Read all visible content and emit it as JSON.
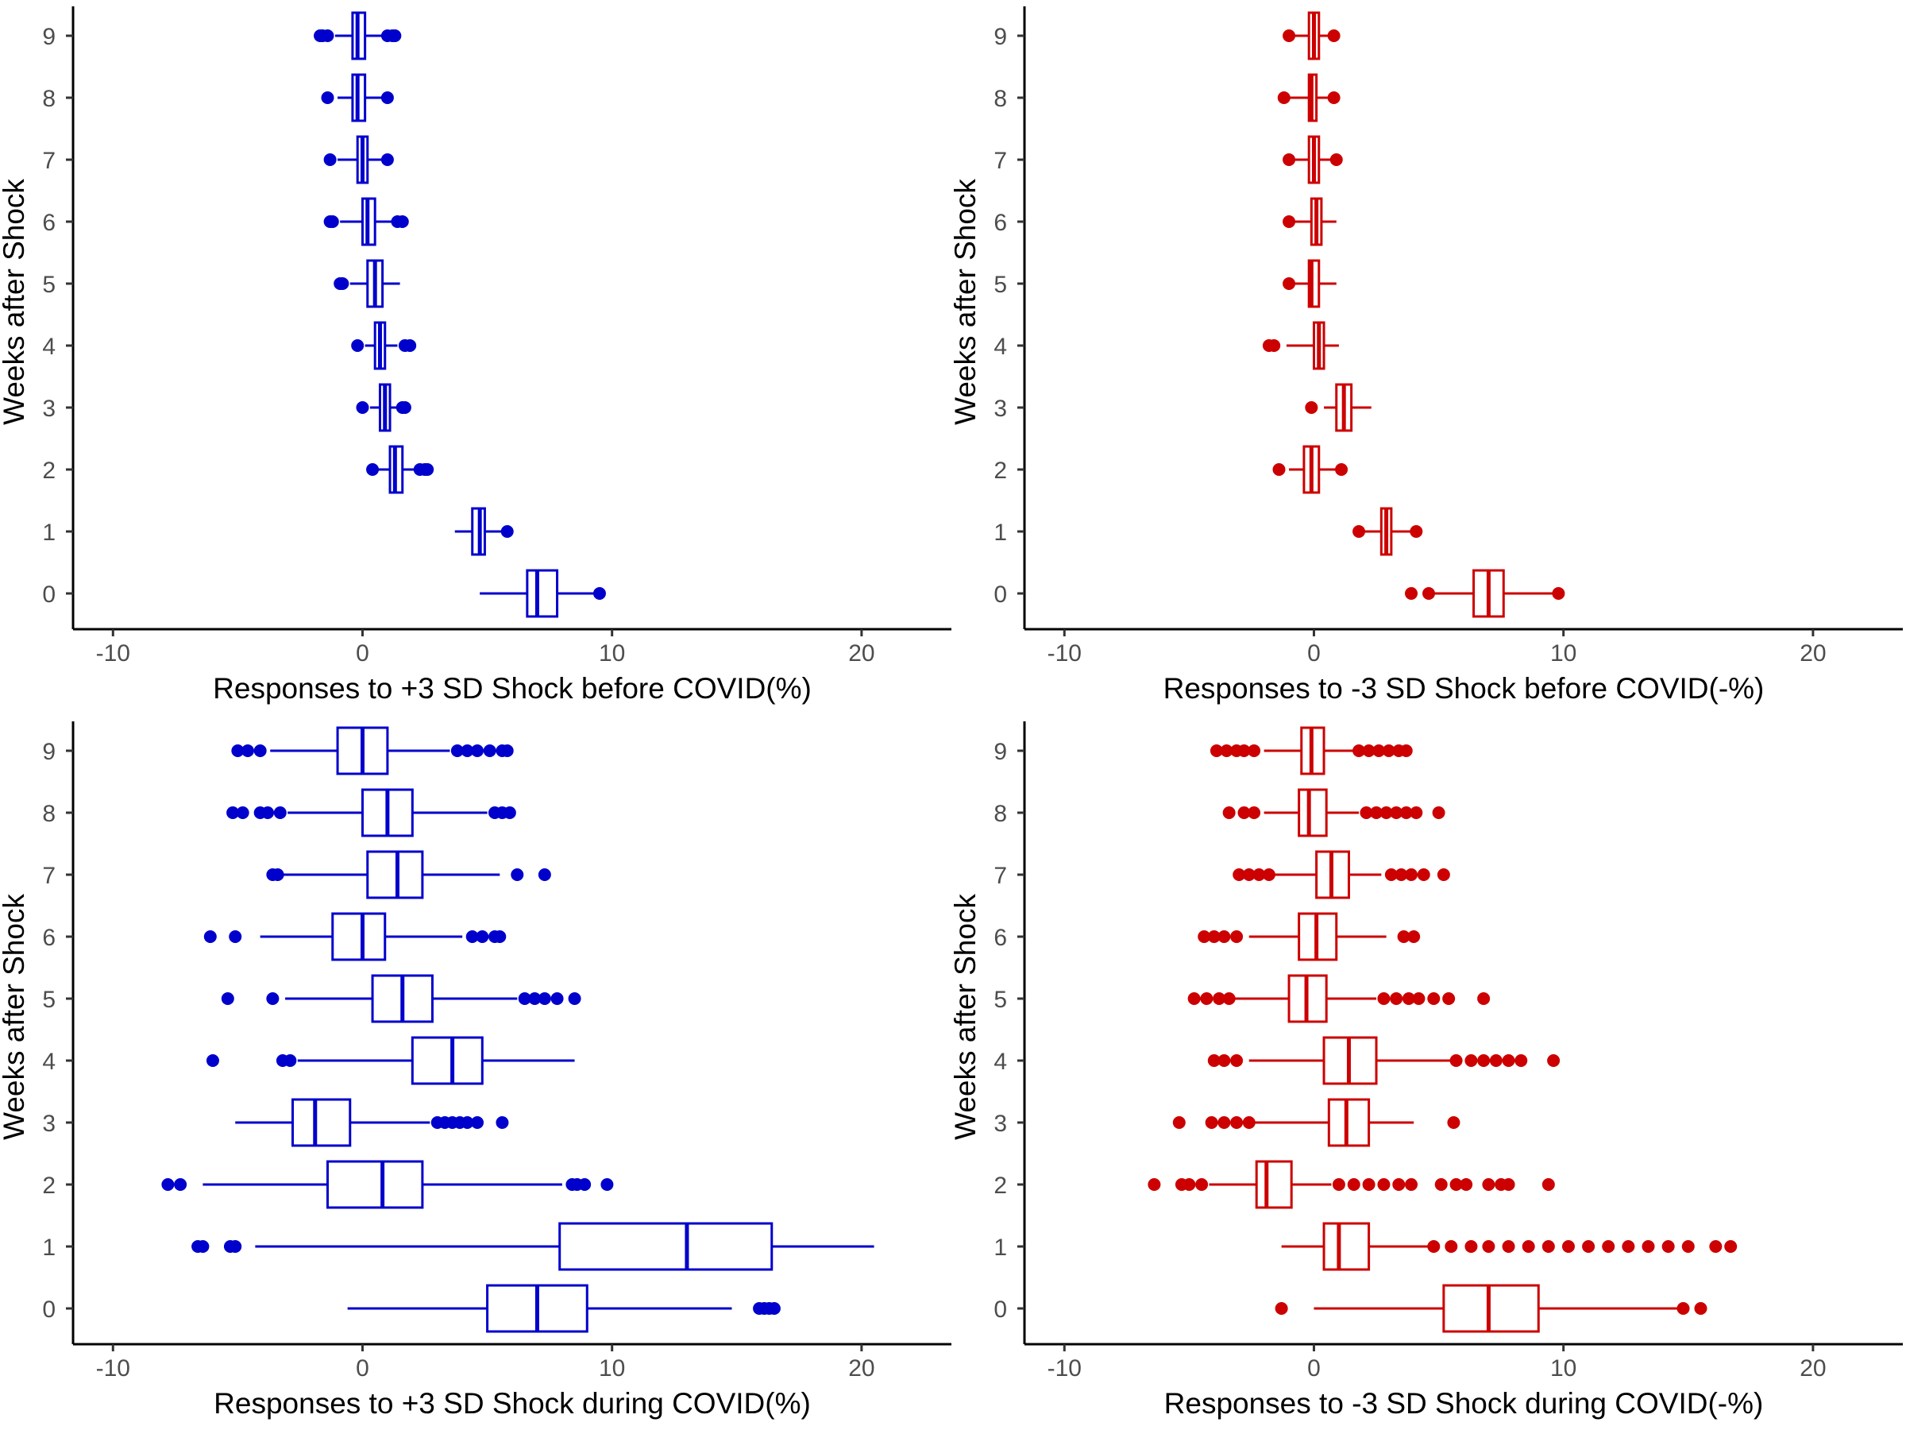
{
  "chart_data": [
    {
      "type": "boxplot",
      "orientation": "horizontal",
      "color": "#0000cc",
      "xlabel": "Responses to +3 SD Shock before COVID(%)",
      "ylabel": "Weeks after Shock",
      "xlim": [
        -11.6,
        23.6
      ],
      "xticks": [
        -10,
        0,
        10,
        20
      ],
      "xtick_labels": [
        "-10",
        "0",
        "10",
        "20"
      ],
      "categories": [
        "0",
        "1",
        "2",
        "3",
        "4",
        "5",
        "6",
        "7",
        "8",
        "9"
      ],
      "grid": false,
      "boxes": [
        {
          "week": "0",
          "whisker_low": 4.7,
          "q1": 6.6,
          "median": 7.0,
          "q3": 7.8,
          "whisker_high": 9.4,
          "outliers": [
            9.5
          ]
        },
        {
          "week": "1",
          "whisker_low": 3.7,
          "q1": 4.4,
          "median": 4.7,
          "q3": 4.9,
          "whisker_high": 5.6,
          "outliers": [
            5.8
          ]
        },
        {
          "week": "2",
          "whisker_low": 0.6,
          "q1": 1.1,
          "median": 1.3,
          "q3": 1.6,
          "whisker_high": 2.1,
          "outliers": [
            0.4,
            2.3,
            2.5,
            2.6
          ]
        },
        {
          "week": "3",
          "whisker_low": 0.3,
          "q1": 0.7,
          "median": 0.9,
          "q3": 1.1,
          "whisker_high": 1.5,
          "outliers": [
            0.0,
            1.6,
            1.7
          ]
        },
        {
          "week": "4",
          "whisker_low": 0.1,
          "q1": 0.5,
          "median": 0.7,
          "q3": 0.9,
          "whisker_high": 1.4,
          "outliers": [
            -0.2,
            1.7,
            1.9
          ]
        },
        {
          "week": "5",
          "whisker_low": -0.5,
          "q1": 0.2,
          "median": 0.5,
          "q3": 0.8,
          "whisker_high": 1.5,
          "outliers": [
            -0.8,
            -0.9
          ]
        },
        {
          "week": "6",
          "whisker_low": -0.9,
          "q1": 0.0,
          "median": 0.2,
          "q3": 0.5,
          "whisker_high": 1.2,
          "outliers": [
            -1.2,
            -1.3,
            1.4,
            1.6
          ]
        },
        {
          "week": "7",
          "whisker_low": -1.0,
          "q1": -0.2,
          "median": 0.0,
          "q3": 0.2,
          "whisker_high": 0.9,
          "outliers": [
            -1.3,
            1.0
          ]
        },
        {
          "week": "8",
          "whisker_low": -1.0,
          "q1": -0.4,
          "median": -0.2,
          "q3": 0.1,
          "whisker_high": 0.8,
          "outliers": [
            -1.4,
            1.0
          ]
        },
        {
          "week": "9",
          "whisker_low": -1.1,
          "q1": -0.4,
          "median": -0.2,
          "q3": 0.1,
          "whisker_high": 0.8,
          "outliers": [
            -1.4,
            -1.6,
            -1.7,
            1.0,
            1.2,
            1.3
          ]
        }
      ]
    },
    {
      "type": "boxplot",
      "orientation": "horizontal",
      "color": "#cc0000",
      "xlabel": "Responses to -3 SD Shock before COVID(-%)",
      "ylabel": "Weeks after Shock",
      "xlim": [
        -11.6,
        23.6
      ],
      "xticks": [
        -10,
        0,
        10,
        20
      ],
      "xtick_labels": [
        "-10",
        "0",
        "10",
        "20"
      ],
      "categories": [
        "0",
        "1",
        "2",
        "3",
        "4",
        "5",
        "6",
        "7",
        "8",
        "9"
      ],
      "grid": false,
      "boxes": [
        {
          "week": "0",
          "whisker_low": 4.8,
          "q1": 6.4,
          "median": 7.0,
          "q3": 7.6,
          "whisker_high": 9.6,
          "outliers": [
            3.9,
            4.6,
            9.8
          ]
        },
        {
          "week": "1",
          "whisker_low": 2.0,
          "q1": 2.7,
          "median": 2.9,
          "q3": 3.1,
          "whisker_high": 3.9,
          "outliers": [
            1.8,
            4.1
          ]
        },
        {
          "week": "2",
          "whisker_low": -1.0,
          "q1": -0.4,
          "median": -0.1,
          "q3": 0.2,
          "whisker_high": 0.9,
          "outliers": [
            -1.4,
            1.1
          ]
        },
        {
          "week": "3",
          "whisker_low": 0.4,
          "q1": 0.9,
          "median": 1.2,
          "q3": 1.5,
          "whisker_high": 2.3,
          "outliers": [
            -0.1
          ]
        },
        {
          "week": "4",
          "whisker_low": -1.1,
          "q1": 0.0,
          "median": 0.2,
          "q3": 0.4,
          "whisker_high": 1.0,
          "outliers": [
            -1.6,
            -1.8
          ]
        },
        {
          "week": "5",
          "whisker_low": -0.9,
          "q1": -0.2,
          "median": -0.1,
          "q3": 0.2,
          "whisker_high": 0.9,
          "outliers": [
            -1.0
          ]
        },
        {
          "week": "6",
          "whisker_low": -0.9,
          "q1": -0.1,
          "median": 0.1,
          "q3": 0.3,
          "whisker_high": 0.9,
          "outliers": [
            -1.0
          ]
        },
        {
          "week": "7",
          "whisker_low": -0.9,
          "q1": -0.2,
          "median": 0.0,
          "q3": 0.2,
          "whisker_high": 0.8,
          "outliers": [
            -1.0,
            0.9
          ]
        },
        {
          "week": "8",
          "whisker_low": -1.0,
          "q1": -0.2,
          "median": -0.1,
          "q3": 0.1,
          "whisker_high": 0.7,
          "outliers": [
            -1.2,
            0.8
          ]
        },
        {
          "week": "9",
          "whisker_low": -0.9,
          "q1": -0.2,
          "median": 0.0,
          "q3": 0.2,
          "whisker_high": 0.7,
          "outliers": [
            -1.0,
            0.8
          ]
        }
      ]
    },
    {
      "type": "boxplot",
      "orientation": "horizontal",
      "color": "#0000cc",
      "xlabel": "Responses to +3 SD Shock during COVID(%)",
      "ylabel": "Weeks after Shock",
      "xlim": [
        -11.6,
        23.6
      ],
      "xticks": [
        -10,
        0,
        10,
        20
      ],
      "xtick_labels": [
        "-10",
        "0",
        "10",
        "20"
      ],
      "categories": [
        "0",
        "1",
        "2",
        "3",
        "4",
        "5",
        "6",
        "7",
        "8",
        "9"
      ],
      "grid": false,
      "boxes": [
        {
          "week": "0",
          "whisker_low": -0.6,
          "q1": 5.0,
          "median": 7.0,
          "q3": 9.0,
          "whisker_high": 14.8,
          "outliers": [
            15.9,
            16.1,
            16.3,
            16.5
          ]
        },
        {
          "week": "1",
          "whisker_low": -4.3,
          "q1": 7.9,
          "median": 13.0,
          "q3": 16.4,
          "whisker_high": 20.5,
          "outliers": [
            -6.6,
            -6.4,
            -5.3,
            -5.1
          ]
        },
        {
          "week": "2",
          "whisker_low": -6.4,
          "q1": -1.4,
          "median": 0.8,
          "q3": 2.4,
          "whisker_high": 8.0,
          "outliers": [
            -7.8,
            -7.3,
            8.4,
            8.6,
            8.9,
            9.8
          ]
        },
        {
          "week": "3",
          "whisker_low": -5.1,
          "q1": -2.8,
          "median": -1.9,
          "q3": -0.5,
          "whisker_high": 2.7,
          "outliers": [
            3.0,
            3.3,
            3.6,
            3.9,
            4.2,
            4.6,
            5.6
          ]
        },
        {
          "week": "4",
          "whisker_low": -2.6,
          "q1": 2.0,
          "median": 3.6,
          "q3": 4.8,
          "whisker_high": 8.5,
          "outliers": [
            -6.0,
            -3.2,
            -2.9
          ]
        },
        {
          "week": "5",
          "whisker_low": -3.1,
          "q1": 0.4,
          "median": 1.6,
          "q3": 2.8,
          "whisker_high": 6.2,
          "outliers": [
            -5.4,
            -3.6,
            6.5,
            6.9,
            7.3,
            7.8,
            8.5
          ]
        },
        {
          "week": "6",
          "whisker_low": -4.1,
          "q1": -1.2,
          "median": 0.0,
          "q3": 0.9,
          "whisker_high": 4.0,
          "outliers": [
            -6.1,
            -5.1,
            4.4,
            4.8,
            5.3,
            5.5
          ]
        },
        {
          "week": "7",
          "whisker_low": -3.2,
          "q1": 0.2,
          "median": 1.4,
          "q3": 2.4,
          "whisker_high": 5.5,
          "outliers": [
            -3.6,
            -3.4,
            6.2,
            7.3
          ]
        },
        {
          "week": "8",
          "whisker_low": -3.0,
          "q1": 0.0,
          "median": 1.0,
          "q3": 2.0,
          "whisker_high": 5.0,
          "outliers": [
            -5.2,
            -4.8,
            -4.1,
            -3.8,
            -3.3,
            5.3,
            5.6,
            5.9
          ]
        },
        {
          "week": "9",
          "whisker_low": -3.7,
          "q1": -1.0,
          "median": 0.0,
          "q3": 1.0,
          "whisker_high": 3.5,
          "outliers": [
            -5.0,
            -4.6,
            -4.1,
            3.8,
            4.2,
            4.6,
            5.1,
            5.6,
            5.8
          ]
        }
      ]
    },
    {
      "type": "boxplot",
      "orientation": "horizontal",
      "color": "#cc0000",
      "xlabel": "Responses to -3 SD Shock during COVID(-%)",
      "ylabel": "Weeks after Shock",
      "xlim": [
        -11.6,
        23.6
      ],
      "xticks": [
        -10,
        0,
        10,
        20
      ],
      "xtick_labels": [
        "-10",
        "0",
        "10",
        "20"
      ],
      "categories": [
        "0",
        "1",
        "2",
        "3",
        "4",
        "5",
        "6",
        "7",
        "8",
        "9"
      ],
      "grid": false,
      "boxes": [
        {
          "week": "0",
          "whisker_low": 0.0,
          "q1": 5.2,
          "median": 7.0,
          "q3": 9.0,
          "whisker_high": 14.6,
          "outliers": [
            -1.3,
            14.8,
            15.5
          ]
        },
        {
          "week": "1",
          "whisker_low": -1.3,
          "q1": 0.4,
          "median": 1.0,
          "q3": 2.2,
          "whisker_high": 4.6,
          "outliers": [
            4.8,
            5.5,
            6.3,
            7.0,
            7.8,
            8.6,
            9.4,
            10.2,
            11.0,
            11.8,
            12.6,
            13.4,
            14.2,
            15.0,
            16.1,
            16.7
          ]
        },
        {
          "week": "2",
          "whisker_low": -4.2,
          "q1": -2.3,
          "median": -1.9,
          "q3": -0.9,
          "whisker_high": 0.7,
          "outliers": [
            -6.4,
            -5.3,
            -5.0,
            -4.5,
            1.0,
            1.6,
            2.2,
            2.8,
            3.4,
            3.9,
            5.1,
            5.7,
            6.1,
            7.0,
            7.5,
            7.8,
            9.4
          ]
        },
        {
          "week": "3",
          "whisker_low": -2.4,
          "q1": 0.6,
          "median": 1.3,
          "q3": 2.2,
          "whisker_high": 4.0,
          "outliers": [
            -5.4,
            -4.1,
            -3.6,
            -3.1,
            -2.6,
            5.6
          ]
        },
        {
          "week": "4",
          "whisker_low": -2.6,
          "q1": 0.4,
          "median": 1.4,
          "q3": 2.5,
          "whisker_high": 5.5,
          "outliers": [
            -4.0,
            -3.6,
            -3.1,
            5.7,
            6.3,
            6.8,
            7.3,
            7.8,
            8.3,
            9.6
          ]
        },
        {
          "week": "5",
          "whisker_low": -3.2,
          "q1": -1.0,
          "median": -0.3,
          "q3": 0.5,
          "whisker_high": 2.5,
          "outliers": [
            -4.8,
            -4.3,
            -3.8,
            -3.4,
            2.8,
            3.3,
            3.8,
            4.2,
            4.8,
            5.4,
            6.8
          ]
        },
        {
          "week": "6",
          "whisker_low": -2.6,
          "q1": -0.6,
          "median": 0.1,
          "q3": 0.9,
          "whisker_high": 2.9,
          "outliers": [
            -4.4,
            -4.0,
            -3.6,
            -3.1,
            3.6,
            4.0
          ]
        },
        {
          "week": "7",
          "whisker_low": -1.6,
          "q1": 0.1,
          "median": 0.7,
          "q3": 1.4,
          "whisker_high": 2.7,
          "outliers": [
            -3.0,
            -2.6,
            -2.2,
            -1.8,
            3.1,
            3.5,
            3.9,
            4.4,
            5.2
          ]
        },
        {
          "week": "8",
          "whisker_low": -2.0,
          "q1": -0.6,
          "median": -0.2,
          "q3": 0.5,
          "whisker_high": 1.8,
          "outliers": [
            -3.4,
            -2.8,
            -2.4,
            2.1,
            2.5,
            2.9,
            3.3,
            3.7,
            4.1,
            5.0
          ]
        },
        {
          "week": "9",
          "whisker_low": -2.0,
          "q1": -0.5,
          "median": -0.1,
          "q3": 0.4,
          "whisker_high": 1.6,
          "outliers": [
            -3.9,
            -3.5,
            -3.1,
            -2.8,
            -2.4,
            1.8,
            2.2,
            2.6,
            3.0,
            3.4,
            3.7
          ]
        }
      ]
    }
  ]
}
